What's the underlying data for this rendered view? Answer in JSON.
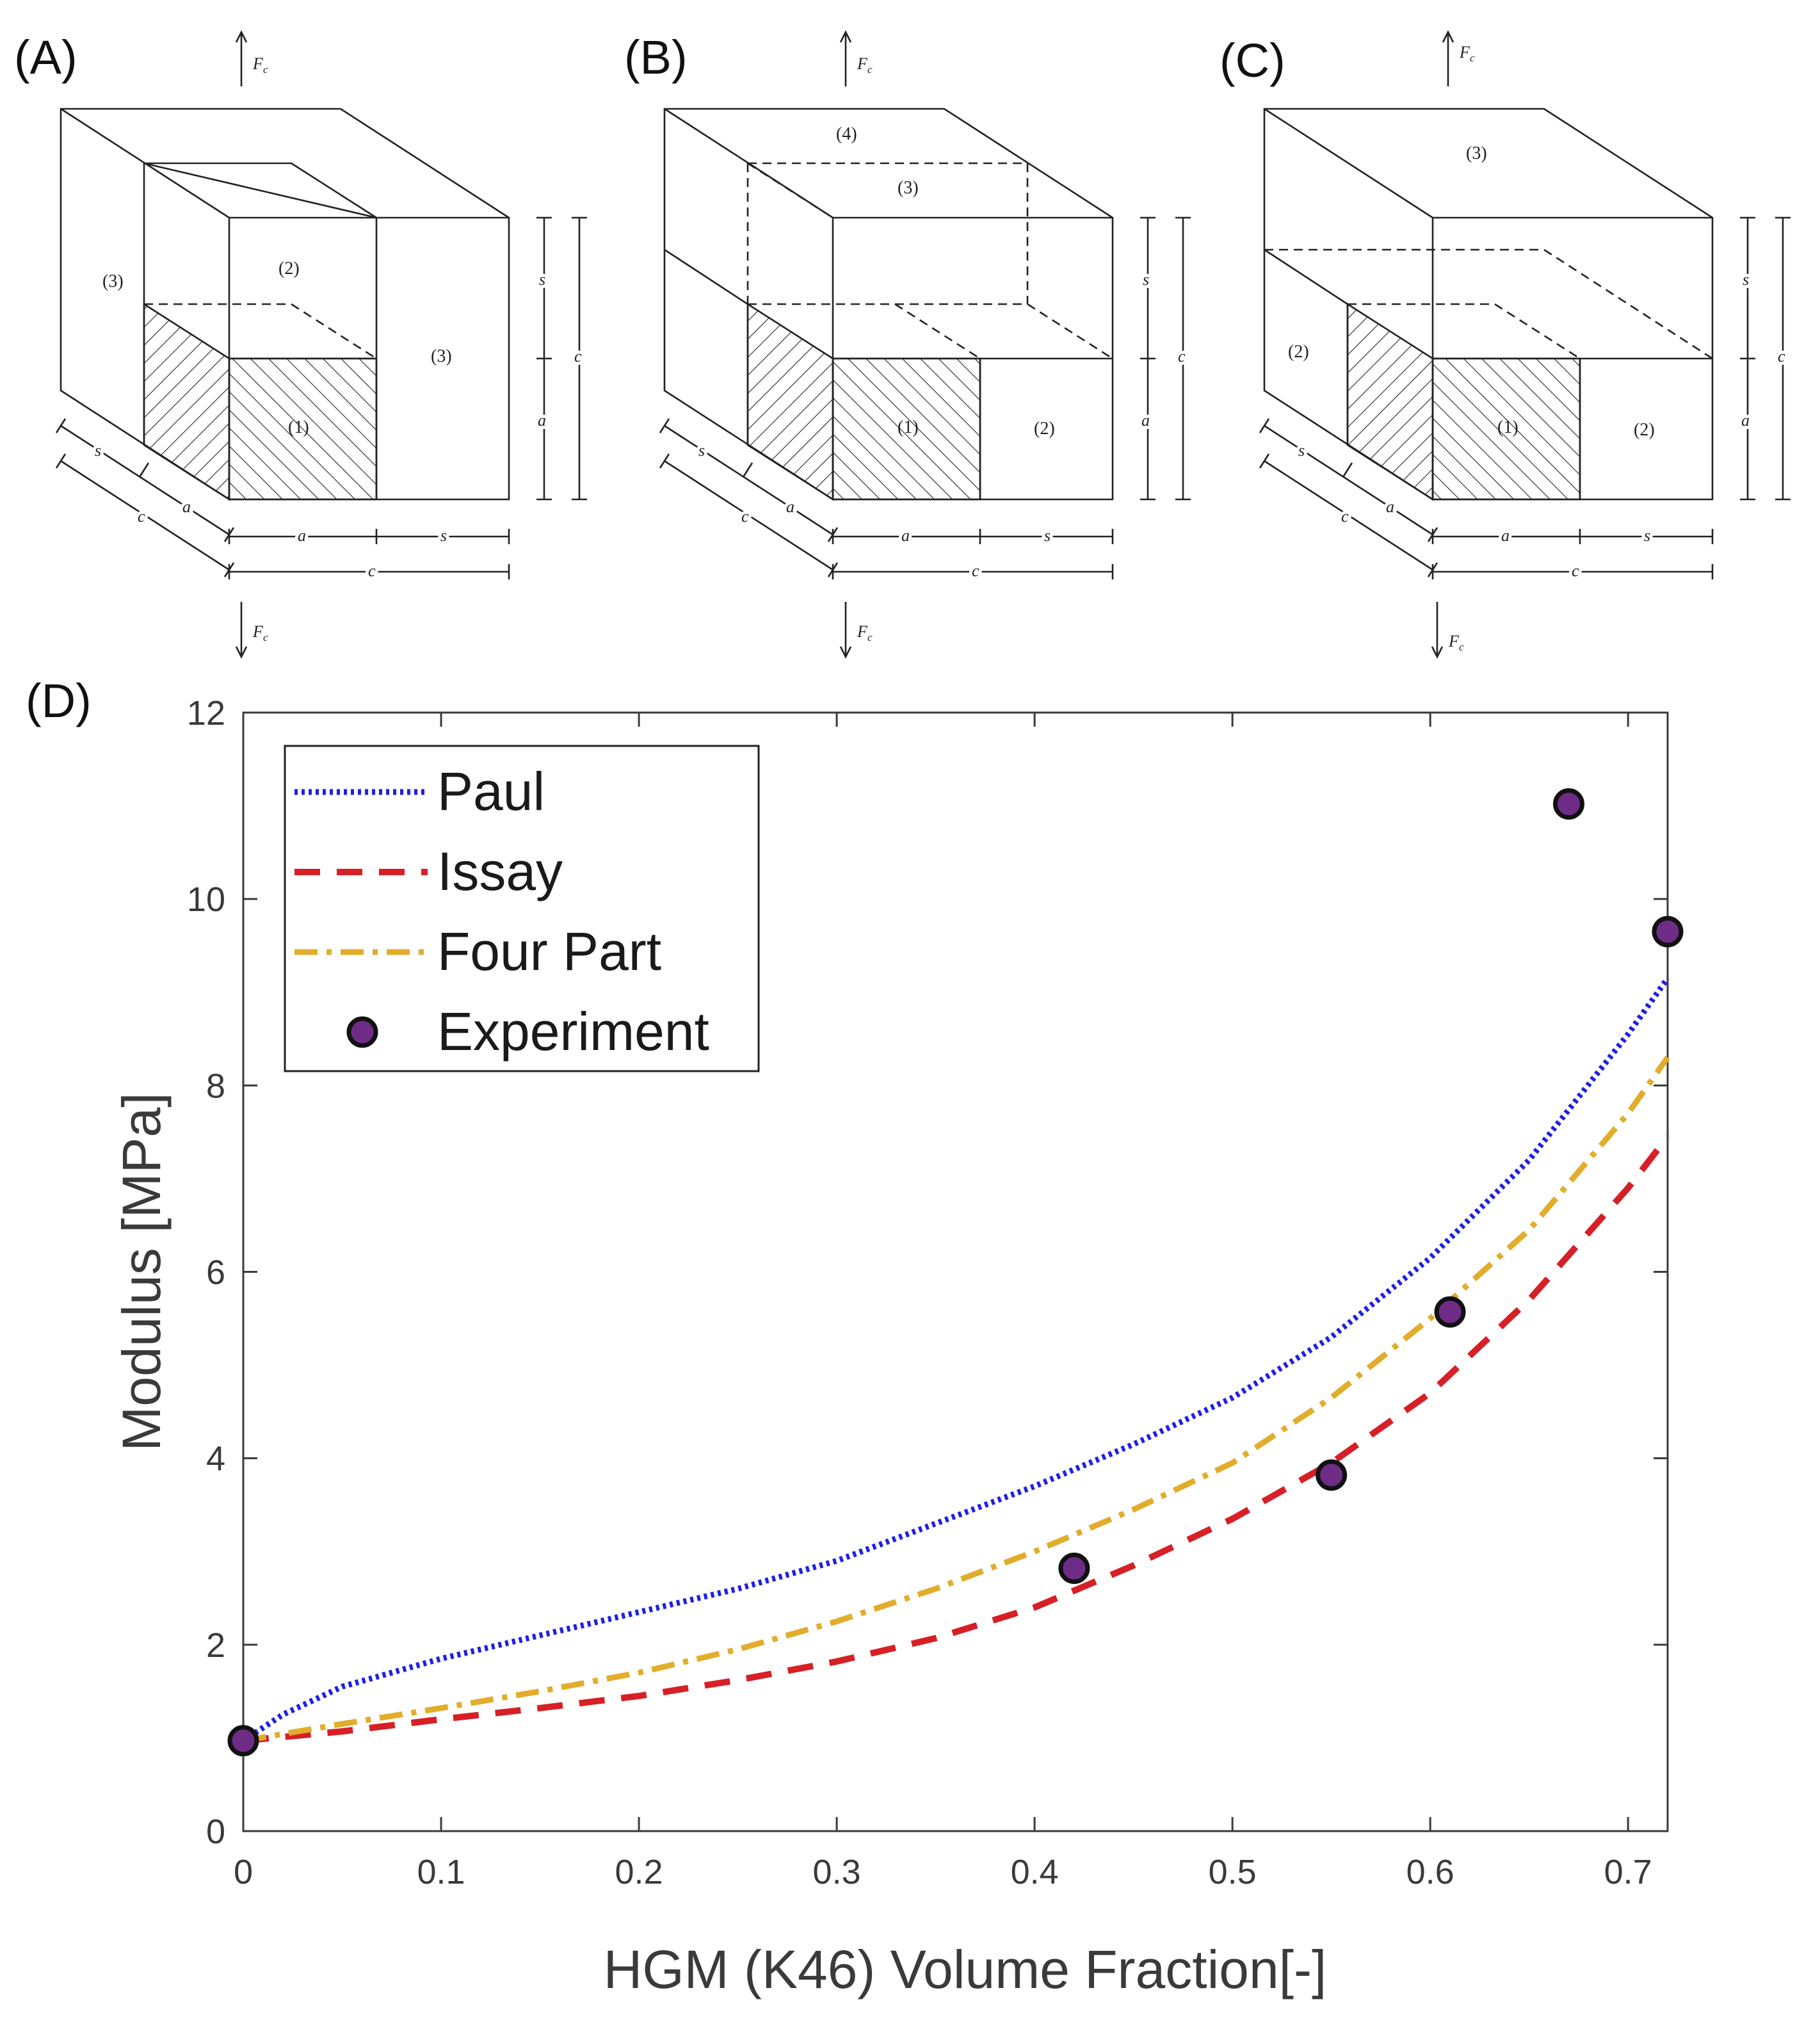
{
  "panels": {
    "A": {
      "label": "(A)",
      "force_label": "F",
      "force_sub": "c",
      "regions": [
        "(1)",
        "(2)",
        "(3)",
        "(3)"
      ],
      "dims": {
        "s": "s",
        "a": "a",
        "c": "c"
      }
    },
    "B": {
      "label": "(B)",
      "force_label": "F",
      "force_sub": "c",
      "regions": [
        "(1)",
        "(2)",
        "(3)",
        "(4)"
      ],
      "dims": {
        "s": "s",
        "a": "a",
        "c": "c"
      }
    },
    "C": {
      "label": "(C)",
      "force_label": "F",
      "force_sub": "c",
      "regions": [
        "(1)",
        "(2)",
        "(2)",
        "(3)"
      ],
      "dims": {
        "s": "s",
        "a": "a",
        "c": "c"
      }
    },
    "D": {
      "label": "(D)"
    }
  },
  "colors": {
    "paul": "#1f1fe6",
    "issay": "#d71f26",
    "fourpart": "#e1ad2b",
    "experiment_fill": "#6e2c86",
    "experiment_edge": "#111111",
    "axis": "#3a3a3a"
  },
  "chart_data": {
    "type": "line",
    "title": "",
    "xlabel": "HGM (K46) Volume Fraction[-]",
    "ylabel": "Modulus [MPa]",
    "xlim": [
      0,
      0.72
    ],
    "ylim": [
      0,
      12
    ],
    "xticks": [
      0,
      0.1,
      0.2,
      0.3,
      0.4,
      0.5,
      0.6,
      0.7
    ],
    "xtick_labels": [
      "0",
      "0.1",
      "0.2",
      "0.3",
      "0.4",
      "0.5",
      "0.6",
      "0.7"
    ],
    "yticks": [
      0,
      2,
      4,
      6,
      8,
      10,
      12
    ],
    "ytick_labels": [
      "0",
      "2",
      "4",
      "6",
      "8",
      "10",
      "12"
    ],
    "legend_position": "top-left",
    "series": [
      {
        "name": "Paul",
        "style": "dotted",
        "x": [
          0,
          0.02,
          0.05,
          0.1,
          0.15,
          0.2,
          0.25,
          0.3,
          0.35,
          0.4,
          0.45,
          0.5,
          0.55,
          0.6,
          0.65,
          0.7,
          0.72
        ],
        "y": [
          0.97,
          1.25,
          1.55,
          1.85,
          2.1,
          2.35,
          2.6,
          2.9,
          3.3,
          3.7,
          4.15,
          4.65,
          5.3,
          6.15,
          7.2,
          8.55,
          9.15
        ]
      },
      {
        "name": "Issay",
        "style": "dashed",
        "x": [
          0,
          0.05,
          0.1,
          0.15,
          0.2,
          0.25,
          0.3,
          0.35,
          0.4,
          0.45,
          0.5,
          0.55,
          0.6,
          0.65,
          0.7,
          0.72
        ],
        "y": [
          0.97,
          1.07,
          1.2,
          1.32,
          1.45,
          1.62,
          1.82,
          2.07,
          2.4,
          2.85,
          3.35,
          3.95,
          4.7,
          5.7,
          6.9,
          7.45
        ]
      },
      {
        "name": "Four Part",
        "style": "dashdot",
        "x": [
          0,
          0.05,
          0.1,
          0.15,
          0.2,
          0.25,
          0.3,
          0.35,
          0.4,
          0.45,
          0.5,
          0.55,
          0.6,
          0.65,
          0.7,
          0.72
        ],
        "y": [
          0.97,
          1.15,
          1.32,
          1.5,
          1.7,
          1.95,
          2.25,
          2.6,
          3.0,
          3.45,
          3.95,
          4.65,
          5.5,
          6.45,
          7.7,
          8.3
        ]
      },
      {
        "name": "Experiment",
        "style": "markers",
        "x": [
          0,
          0.42,
          0.55,
          0.61,
          0.67,
          0.72
        ],
        "y": [
          0.97,
          2.82,
          3.82,
          5.57,
          11.02,
          9.65
        ]
      }
    ]
  }
}
